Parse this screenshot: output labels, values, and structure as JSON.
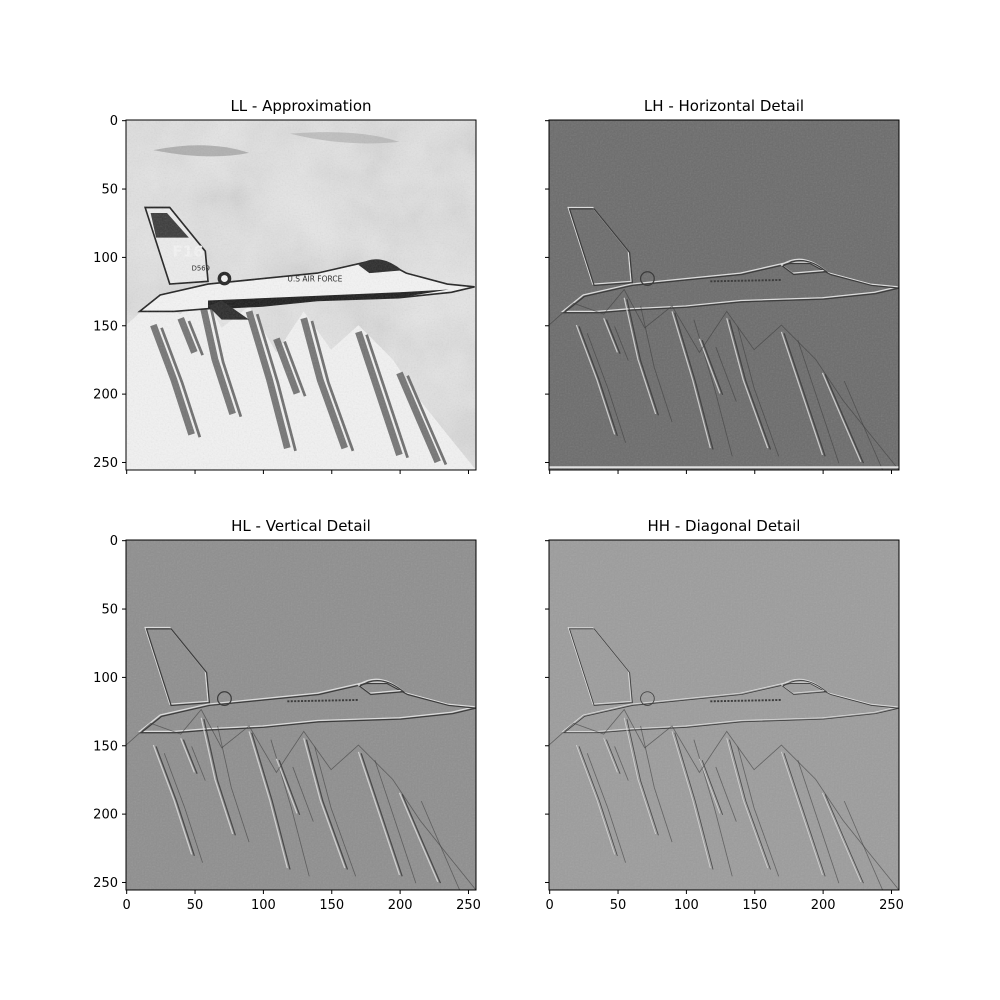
{
  "figure": {
    "background": "#ffffff",
    "image_size": 256,
    "x_ticks": [
      0,
      50,
      100,
      150,
      200,
      250
    ],
    "y_ticks": [
      0,
      50,
      100,
      150,
      200,
      250
    ],
    "colormap": "gray"
  },
  "panels": [
    {
      "key": "ll",
      "title": "LL - Approximation",
      "show_x_tick_labels": false,
      "show_y_tick_labels": true,
      "content": "approximation",
      "base_gray": "#e6e6e6"
    },
    {
      "key": "lh",
      "title": "LH - Horizontal Detail",
      "show_x_tick_labels": false,
      "show_y_tick_labels": false,
      "content": "detail",
      "base_gray": "#6b6b6b"
    },
    {
      "key": "hl",
      "title": "HL - Vertical Detail",
      "show_x_tick_labels": true,
      "show_y_tick_labels": true,
      "content": "detail",
      "base_gray": "#8e8e8e"
    },
    {
      "key": "hh",
      "title": "HH - Diagonal Detail",
      "show_x_tick_labels": true,
      "show_y_tick_labels": false,
      "content": "detail",
      "base_gray": "#9c9c9c"
    }
  ],
  "aircraft_markings": {
    "tail_code": "F16",
    "serial": "D569",
    "fuselage_text": "U.S AIR FORCE"
  }
}
